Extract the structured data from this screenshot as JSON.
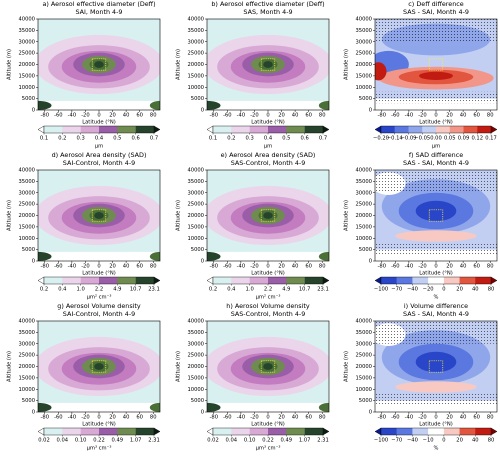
{
  "chart_data": [
    {
      "type": "contour",
      "title": "a) Aerosol effective diameter (Deff)",
      "subtitle": "SAI, Month 4-9",
      "xlabel": "Latitude (°N)",
      "ylabel": "Altitude (m)",
      "xlim": [
        -90,
        90
      ],
      "xticks": [
        -80,
        -60,
        -40,
        -20,
        0,
        20,
        40,
        60,
        80
      ],
      "ylim": [
        0,
        40000
      ],
      "yticks": [
        0,
        5000,
        10000,
        15000,
        20000,
        25000,
        30000,
        35000,
        40000
      ],
      "colormap": "sequential",
      "colorbar": {
        "levels": [
          "0.1",
          "0.2",
          "0.3",
          "0.4",
          "0.5",
          "0.6",
          "0.7"
        ],
        "label": "μm"
      }
    },
    {
      "type": "contour",
      "title": "b) Aerosol effective diameter (Deff)",
      "subtitle": "SAS, Month 4-9",
      "xlabel": "Latitude (°N)",
      "ylabel": "Altitude (m)",
      "xlim": [
        -90,
        90
      ],
      "xticks": [
        -80,
        -60,
        -40,
        -20,
        0,
        20,
        40,
        60,
        80
      ],
      "ylim": [
        0,
        40000
      ],
      "yticks": [
        0,
        5000,
        10000,
        15000,
        20000,
        25000,
        30000,
        35000,
        40000
      ],
      "colormap": "sequential",
      "colorbar": {
        "levels": [
          "0.1",
          "0.2",
          "0.3",
          "0.4",
          "0.5",
          "0.6",
          "0.7"
        ],
        "label": "μm"
      }
    },
    {
      "type": "contour",
      "title": "c) Deff difference",
      "subtitle": "SAS - SAI, Month 4-9",
      "xlabel": "Latitude (°N)",
      "ylabel": "Altitude (m)",
      "xlim": [
        -90,
        90
      ],
      "xticks": [
        -80,
        -60,
        -40,
        -20,
        0,
        20,
        40,
        60,
        80
      ],
      "ylim": [
        0,
        40000
      ],
      "yticks": [
        0,
        5000,
        10000,
        15000,
        20000,
        25000,
        30000,
        35000,
        40000
      ],
      "colormap": "diverging-red",
      "colorbar": {
        "levels": [
          "−0.20",
          "−0.14",
          "−0.09",
          "−0.05",
          "0.00",
          "0.05",
          "0.09",
          "0.12",
          "0.17"
        ],
        "label": "μm"
      }
    },
    {
      "type": "contour",
      "title": "d) Aerosol Area density (SAD)",
      "subtitle": "SAI-Control, Month 4-9",
      "xlabel": "Latitude (°N)",
      "ylabel": "Altitude (m)",
      "xlim": [
        -90,
        90
      ],
      "xticks": [
        -80,
        -60,
        -40,
        -20,
        0,
        20,
        40,
        60,
        80
      ],
      "ylim": [
        0,
        40000
      ],
      "yticks": [
        0,
        5000,
        10000,
        15000,
        20000,
        25000,
        30000,
        35000,
        40000
      ],
      "colormap": "sequential",
      "colorbar": {
        "levels": [
          "0.2",
          "0.4",
          "1.0",
          "2.2",
          "4.9",
          "10.7",
          "23.1"
        ],
        "label": "μm² cm⁻³"
      }
    },
    {
      "type": "contour",
      "title": "e) Aerosol Area density (SAD)",
      "subtitle": "SAS-Control, Month 4-9",
      "xlabel": "Latitude (°N)",
      "ylabel": "Altitude (m)",
      "xlim": [
        -90,
        90
      ],
      "xticks": [
        -80,
        -60,
        -40,
        -20,
        0,
        20,
        40,
        60,
        80
      ],
      "ylim": [
        0,
        40000
      ],
      "yticks": [
        0,
        5000,
        10000,
        15000,
        20000,
        25000,
        30000,
        35000,
        40000
      ],
      "colormap": "sequential",
      "colorbar": {
        "levels": [
          "0.2",
          "0.4",
          "1.0",
          "2.2",
          "4.9",
          "10.7",
          "23.1"
        ],
        "label": "μm² cm⁻³"
      }
    },
    {
      "type": "contour",
      "title": "f) SAD difference",
      "subtitle": "SAS - SAI, Month 4-9",
      "xlabel": "Latitude (°N)",
      "ylabel": "Altitude (m)",
      "xlim": [
        -90,
        90
      ],
      "xticks": [
        -80,
        -60,
        -40,
        -20,
        0,
        20,
        40,
        60,
        80
      ],
      "ylim": [
        0,
        40000
      ],
      "yticks": [
        0,
        5000,
        10000,
        15000,
        20000,
        25000,
        30000,
        35000,
        40000
      ],
      "colormap": "diverging-blue",
      "colorbar": {
        "levels": [
          "−100",
          "−70",
          "−40",
          "−20",
          "0",
          "20",
          "40",
          "80"
        ],
        "label": "%"
      }
    },
    {
      "type": "contour",
      "title": "g) Aerosol Volume density",
      "subtitle": "SAI-Control, Month 4-9",
      "xlabel": "Latitude (°N)",
      "ylabel": "Altitude (m)",
      "xlim": [
        -90,
        90
      ],
      "xticks": [
        -80,
        -60,
        -40,
        -20,
        0,
        20,
        40,
        60,
        80
      ],
      "ylim": [
        0,
        40000
      ],
      "yticks": [
        0,
        5000,
        10000,
        15000,
        20000,
        25000,
        30000,
        35000,
        40000
      ],
      "colormap": "sequential",
      "colorbar": {
        "levels": [
          "0.02",
          "0.04",
          "0.10",
          "0.22",
          "0.49",
          "1.07",
          "2.31"
        ],
        "label": "μm³ cm⁻³"
      }
    },
    {
      "type": "contour",
      "title": "h) Aerosol Volume density",
      "subtitle": "SAS-Control, Month 4-9",
      "xlabel": "Latitude (°N)",
      "ylabel": "Altitude (m)",
      "xlim": [
        -90,
        90
      ],
      "xticks": [
        -80,
        -60,
        -40,
        -20,
        0,
        20,
        40,
        60,
        80
      ],
      "ylim": [
        0,
        40000
      ],
      "yticks": [
        0,
        5000,
        10000,
        15000,
        20000,
        25000,
        30000,
        35000,
        40000
      ],
      "colormap": "sequential",
      "colorbar": {
        "levels": [
          "0.02",
          "0.04",
          "0.10",
          "0.22",
          "0.49",
          "1.07",
          "2.31"
        ],
        "label": "μm³ cm⁻³"
      }
    },
    {
      "type": "contour",
      "title": "i) Volume difference",
      "subtitle": "SAS - SAI, Month 4-9",
      "xlabel": "Latitude (°N)",
      "ylabel": "Altitude (m)",
      "xlim": [
        -90,
        90
      ],
      "xticks": [
        -80,
        -60,
        -40,
        -20,
        0,
        20,
        40,
        60,
        80
      ],
      "ylim": [
        0,
        40000
      ],
      "yticks": [
        0,
        5000,
        10000,
        15000,
        20000,
        25000,
        30000,
        35000,
        40000
      ],
      "colormap": "diverging-blue",
      "colorbar": {
        "levels": [
          "−100",
          "−70",
          "−40",
          "−10",
          "0",
          "20",
          "40",
          "80"
        ],
        "label": "%"
      }
    }
  ]
}
